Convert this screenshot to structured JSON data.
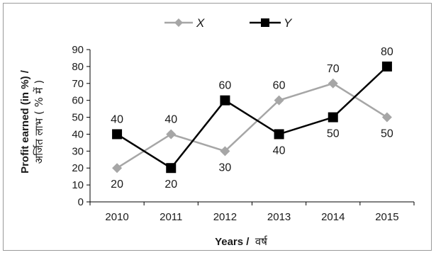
{
  "chart_data": {
    "type": "line",
    "title": "",
    "categories": [
      "2010",
      "2011",
      "2012",
      "2013",
      "2014",
      "2015"
    ],
    "xlabel_bold": "Years /",
    "xlabel_hindi": "वर्ष",
    "ylabel_line1": "Profit earned (in %) /",
    "ylabel_line2": "अर्जित लाभ ( % में )",
    "ylim": [
      0,
      90
    ],
    "yticks": [
      "0",
      "10",
      "20",
      "30",
      "40",
      "50",
      "60",
      "70",
      "80",
      "90"
    ],
    "grid": false,
    "legend_position": "top-center",
    "series": [
      {
        "name": "X",
        "values": [
          20,
          40,
          30,
          60,
          70,
          50
        ],
        "color": "#a6a6a6",
        "marker": "diamond"
      },
      {
        "name": "Y",
        "values": [
          40,
          20,
          60,
          40,
          50,
          80
        ],
        "color": "#000000",
        "marker": "square"
      }
    ]
  }
}
